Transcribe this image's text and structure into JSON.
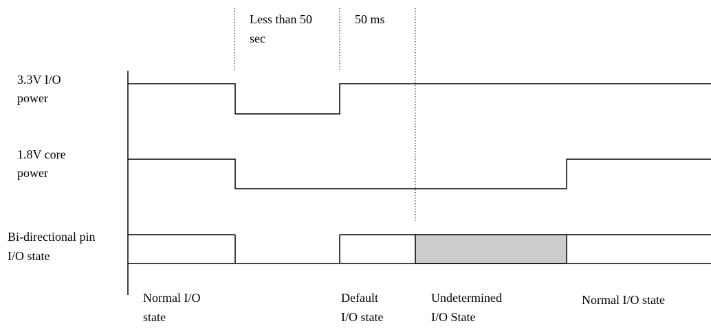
{
  "signals": {
    "io_power": {
      "label_line1": "3.3V I/O",
      "label_line2": "power"
    },
    "core_power": {
      "label_line1": "1.8V core",
      "label_line2": "power"
    },
    "bidir_pin": {
      "label_line1": "Bi-directional pin",
      "label_line2": "I/O state"
    }
  },
  "intervals": {
    "less_than": {
      "line1": "Less than 50",
      "line2": "sec"
    },
    "fifty_ms": {
      "line1": "50 ms"
    }
  },
  "states": {
    "normal_1": {
      "line1": "Normal I/O",
      "line2": "state"
    },
    "default": {
      "line1": "Default",
      "line2": "I/O state"
    },
    "undetermined": {
      "line1": "Undetermined",
      "line2": "I/O State"
    },
    "normal_2": {
      "line1": "Normal I/O state"
    }
  },
  "colors": {
    "line": "#000000",
    "undetermined_fill": "#cccccc",
    "background": "#ffffff"
  }
}
